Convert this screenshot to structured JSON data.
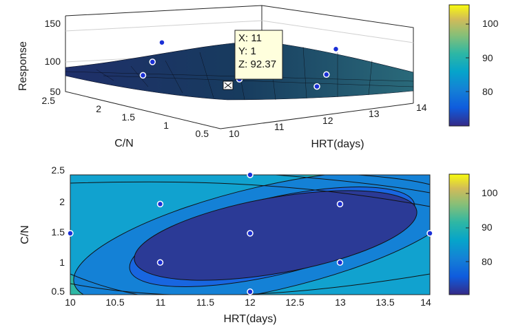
{
  "chart_data": [
    {
      "type": "surface",
      "zlabel": "Response",
      "xlabel": "HRT(days)",
      "ylabel": "C/N",
      "x_ticks": [
        "10",
        "11",
        "12",
        "13",
        "14"
      ],
      "y_ticks": [
        "0.5",
        "1",
        "1.5",
        "2",
        "2.5"
      ],
      "z_ticks": [
        "50",
        "100",
        "150"
      ],
      "xlim": [
        10,
        14
      ],
      "ylim": [
        0.5,
        2.5
      ],
      "zlim": [
        50,
        150
      ],
      "grid": true,
      "design_points": [
        {
          "x": 10,
          "y": 1.5,
          "z": 96
        },
        {
          "x": 14,
          "y": 1.5,
          "z": 97
        },
        {
          "x": 12,
          "y": 0.5,
          "z": 89
        },
        {
          "x": 12,
          "y": 2.5,
          "z": 98
        },
        {
          "x": 11,
          "y": 1,
          "z": 86
        },
        {
          "x": 11,
          "y": 2,
          "z": 93
        },
        {
          "x": 13,
          "y": 1,
          "z": 84
        },
        {
          "x": 13,
          "y": 2,
          "z": 93
        },
        {
          "x": 12,
          "y": 1.5,
          "z": 74
        }
      ],
      "datatip": {
        "x_label": "X: 11",
        "y_label": "Y: 1",
        "z_label": "Z: 92.37",
        "x": 11,
        "y": 1,
        "z": 92.37
      },
      "colorbar": {
        "ticks": [
          "80",
          "90",
          "100"
        ],
        "range": [
          71,
          105
        ]
      }
    },
    {
      "type": "contour",
      "xlabel": "HRT(days)",
      "ylabel": "C/N",
      "x_ticks": [
        "10",
        "10.5",
        "11",
        "11.5",
        "12",
        "12.5",
        "13",
        "13.5",
        "14"
      ],
      "y_ticks": [
        "0.5",
        "1",
        "1.5",
        "2",
        "2.5"
      ],
      "xlim": [
        10,
        14
      ],
      "ylim": [
        0.45,
        2.5
      ],
      "center": {
        "x": 12.1,
        "y": 1.4
      },
      "min_response": 71,
      "levels": [
        75,
        80,
        85,
        90,
        95,
        100
      ],
      "points": [
        {
          "x": 10,
          "y": 1.5
        },
        {
          "x": 14,
          "y": 1.5
        },
        {
          "x": 12,
          "y": 0.5
        },
        {
          "x": 12,
          "y": 2.5
        },
        {
          "x": 11,
          "y": 1
        },
        {
          "x": 11,
          "y": 2
        },
        {
          "x": 13,
          "y": 1
        },
        {
          "x": 13,
          "y": 2
        },
        {
          "x": 12,
          "y": 1.5
        }
      ],
      "colorbar": {
        "ticks": [
          "80",
          "90",
          "100"
        ],
        "range": [
          71,
          105
        ]
      }
    }
  ]
}
